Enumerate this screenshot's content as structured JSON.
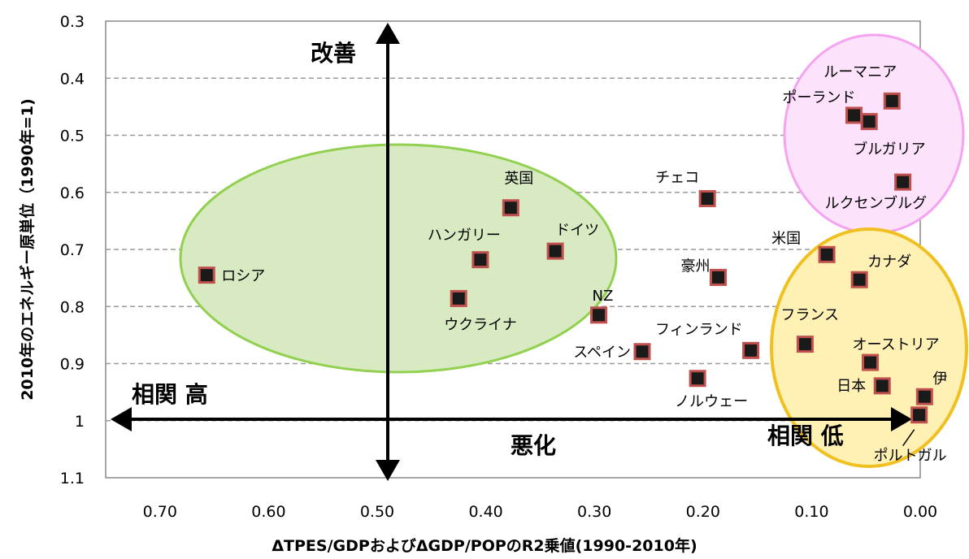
{
  "chart_data": {
    "type": "scatter",
    "xlabel": "ΔTPES/GDPおよびΔGDP/POPのR2乗値(1990-2010年)",
    "ylabel": "2010年のエネルギー原単位（1990年=1)",
    "xlim": [
      0.75,
      0.0
    ],
    "ylim": [
      1.1,
      0.3
    ],
    "x_ticks": [
      "0.70",
      "0.60",
      "0.50",
      "0.40",
      "0.30",
      "0.20",
      "0.10",
      "0.00"
    ],
    "y_ticks": [
      "0.3",
      "0.4",
      "0.5",
      "0.6",
      "0.7",
      "0.8",
      "0.9",
      "1",
      "1.1"
    ],
    "x_axis_reversed": true,
    "y_axis_reversed": true,
    "grid": "horizontal-dashed",
    "points": [
      {
        "label": "ロシア",
        "x": 0.657,
        "y": 0.745
      },
      {
        "label": "英国",
        "x": 0.377,
        "y": 0.627
      },
      {
        "label": "ハンガリー",
        "x": 0.405,
        "y": 0.718
      },
      {
        "label": "ドイツ",
        "x": 0.336,
        "y": 0.703
      },
      {
        "label": "ウクライナ",
        "x": 0.425,
        "y": 0.786
      },
      {
        "label": "NZ",
        "x": 0.296,
        "y": 0.815
      },
      {
        "label": "スペイン",
        "x": 0.256,
        "y": 0.879
      },
      {
        "label": "チェコ",
        "x": 0.196,
        "y": 0.611
      },
      {
        "label": "豪州",
        "x": 0.186,
        "y": 0.749
      },
      {
        "label": "フィンランド",
        "x": 0.156,
        "y": 0.877
      },
      {
        "label": "ノルウェー",
        "x": 0.205,
        "y": 0.926
      },
      {
        "label": "ルーマニア",
        "x": 0.026,
        "y": 0.44
      },
      {
        "label": "ポーランド",
        "x": 0.061,
        "y": 0.465
      },
      {
        "label": "ブルガリア",
        "x": 0.047,
        "y": 0.476
      },
      {
        "label": "ルクセンブルグ",
        "x": 0.016,
        "y": 0.582
      },
      {
        "label": "米国",
        "x": 0.086,
        "y": 0.709
      },
      {
        "label": "カナダ",
        "x": 0.056,
        "y": 0.753
      },
      {
        "label": "フランス",
        "x": 0.106,
        "y": 0.866
      },
      {
        "label": "オーストリア",
        "x": 0.046,
        "y": 0.898
      },
      {
        "label": "日本",
        "x": 0.035,
        "y": 0.939
      },
      {
        "label": "伊",
        "x": -0.004,
        "y": 0.958
      },
      {
        "label": "ポルトガル",
        "x": 0.001,
        "y": 0.99
      }
    ],
    "annotations": {
      "improve": "改善",
      "worsen": "悪化",
      "high_corr": "相関 高",
      "low_corr": "相関 低"
    },
    "groups": [
      {
        "color": "#92d050",
        "fill": "#d8eac2",
        "members": [
          "ロシア",
          "英国",
          "ハンガリー",
          "ドイツ",
          "ウクライナ"
        ]
      },
      {
        "color": "#f5a3f0",
        "fill": "#fde2fb",
        "members": [
          "ルーマニア",
          "ポーランド",
          "ブルガリア",
          "ルクセンブルグ"
        ]
      },
      {
        "color": "#f0c020",
        "fill": "#fff0b3",
        "members": [
          "米国",
          "カナダ",
          "フランス",
          "オーストリア",
          "日本",
          "伊",
          "ポルトガル"
        ]
      }
    ],
    "marker_fill": "#1a1a1a",
    "marker_border": "#c0504d"
  }
}
